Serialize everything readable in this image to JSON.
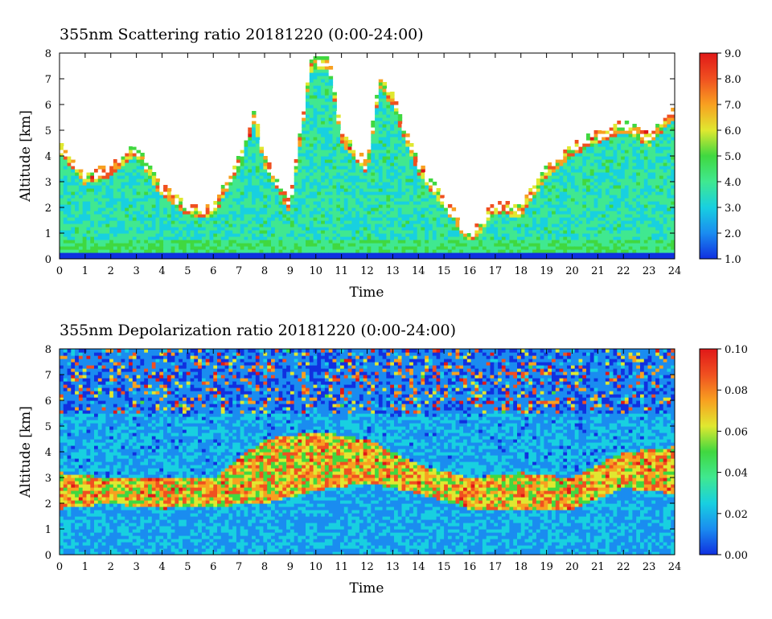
{
  "chart_data": [
    {
      "type": "heatmap",
      "title": "355nm Scattering ratio  20181220 (0:00-24:00)",
      "xlabel": "Time",
      "ylabel": "Altitude [km]",
      "x_ticks": [
        "0",
        "1",
        "2",
        "3",
        "4",
        "5",
        "6",
        "7",
        "8",
        "9",
        "10",
        "11",
        "12",
        "13",
        "14",
        "15",
        "16",
        "17",
        "18",
        "19",
        "20",
        "21",
        "22",
        "23",
        "24"
      ],
      "y_ticks": [
        "0",
        "1",
        "2",
        "3",
        "4",
        "5",
        "6",
        "7",
        "8"
      ],
      "xlim": [
        0,
        24
      ],
      "ylim": [
        0,
        8
      ],
      "colorbar": {
        "ticks": [
          "1.0",
          "2.0",
          "3.0",
          "4.0",
          "5.0",
          "6.0",
          "7.0",
          "8.0",
          "9.0"
        ],
        "range": [
          1.0,
          9.0
        ],
        "colormap": [
          "#1030e0",
          "#1a8cf0",
          "#18d0e0",
          "#40e890",
          "#40d840",
          "#e0e830",
          "#f8a020",
          "#f05020",
          "#e01818"
        ]
      },
      "cloud_tops_km": [
        {
          "time": 0,
          "top": 4.6
        },
        {
          "time": 1,
          "top": 3.4
        },
        {
          "time": 2,
          "top": 3.7
        },
        {
          "time": 3,
          "top": 4.5
        },
        {
          "time": 4,
          "top": 2.9
        },
        {
          "time": 5,
          "top": 2.2
        },
        {
          "time": 6,
          "top": 2.1
        },
        {
          "time": 7,
          "top": 4.0
        },
        {
          "time": 7.6,
          "top": 5.8
        },
        {
          "time": 8,
          "top": 4.0
        },
        {
          "time": 9,
          "top": 2.3
        },
        {
          "time": 9.8,
          "top": 7.8
        },
        {
          "time": 10.5,
          "top": 7.9
        },
        {
          "time": 11,
          "top": 5.0
        },
        {
          "time": 12,
          "top": 3.8
        },
        {
          "time": 12.5,
          "top": 7.2
        },
        {
          "time": 13,
          "top": 6.4
        },
        {
          "time": 14,
          "top": 3.8
        },
        {
          "time": 15,
          "top": 2.5
        },
        {
          "time": 16,
          "top": 1.0
        },
        {
          "time": 17,
          "top": 2.3
        },
        {
          "time": 18,
          "top": 2.1
        },
        {
          "time": 19,
          "top": 3.7
        },
        {
          "time": 20,
          "top": 4.5
        },
        {
          "time": 21,
          "top": 5.0
        },
        {
          "time": 22,
          "top": 5.4
        },
        {
          "time": 23,
          "top": 4.9
        },
        {
          "time": 24,
          "top": 6.0
        }
      ]
    },
    {
      "type": "heatmap",
      "title": "355nm Depolarization ratio  20181220 (0:00-24:00)",
      "xlabel": "Time",
      "ylabel": "Altitude [km]",
      "x_ticks": [
        "0",
        "1",
        "2",
        "3",
        "4",
        "5",
        "6",
        "7",
        "8",
        "9",
        "10",
        "11",
        "12",
        "13",
        "14",
        "15",
        "16",
        "17",
        "18",
        "19",
        "20",
        "21",
        "22",
        "23",
        "24"
      ],
      "y_ticks": [
        "0",
        "1",
        "2",
        "3",
        "4",
        "5",
        "6",
        "7",
        "8"
      ],
      "xlim": [
        0,
        24
      ],
      "ylim": [
        0,
        8
      ],
      "colorbar": {
        "ticks": [
          "0.00",
          "0.02",
          "0.04",
          "0.06",
          "0.08",
          "0.10"
        ],
        "range": [
          0.0,
          0.1
        ],
        "colormap": [
          "#1030e0",
          "#1a8cf0",
          "#18d0e0",
          "#40e890",
          "#40d840",
          "#e0e830",
          "#f8a020",
          "#f05020",
          "#e01818"
        ]
      },
      "aerosol_layer_km": [
        {
          "time": 0,
          "bottom": 1.8,
          "top": 3.2
        },
        {
          "time": 2,
          "bottom": 2.0,
          "top": 3.0
        },
        {
          "time": 4,
          "bottom": 1.8,
          "top": 3.0
        },
        {
          "time": 6,
          "bottom": 1.9,
          "top": 3.0
        },
        {
          "time": 8,
          "bottom": 2.0,
          "top": 4.5
        },
        {
          "time": 10,
          "bottom": 2.5,
          "top": 4.8
        },
        {
          "time": 12,
          "bottom": 2.8,
          "top": 4.5
        },
        {
          "time": 14,
          "bottom": 2.4,
          "top": 3.5
        },
        {
          "time": 16,
          "bottom": 1.8,
          "top": 3.0
        },
        {
          "time": 18,
          "bottom": 1.8,
          "top": 3.2
        },
        {
          "time": 20,
          "bottom": 1.8,
          "top": 3.0
        },
        {
          "time": 22,
          "bottom": 2.6,
          "top": 4.0
        },
        {
          "time": 24,
          "bottom": 2.4,
          "top": 4.2
        }
      ]
    }
  ]
}
